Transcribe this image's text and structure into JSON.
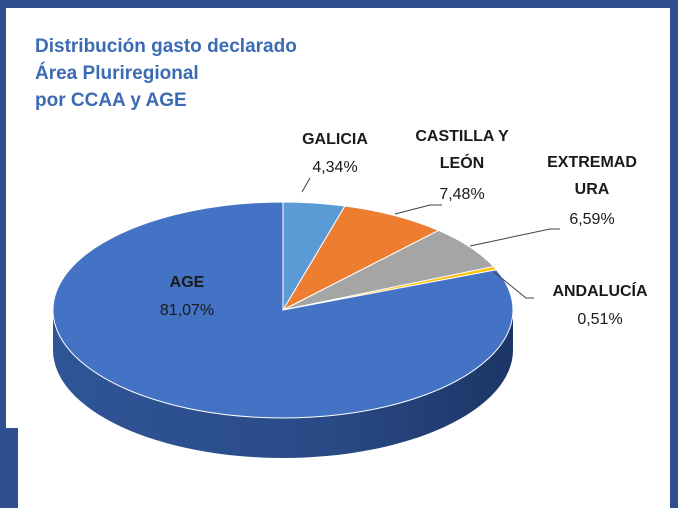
{
  "chart_data": {
    "type": "pie",
    "title": [
      "Distribución gasto declarado",
      "Área Pluriregional",
      "por CCAA y AGE"
    ],
    "categories": [
      "GALICIA",
      "CASTILLA Y LEÓN",
      "EXTREMADURA",
      "ANDALUCÍA",
      "AGE"
    ],
    "values": [
      4.34,
      7.48,
      6.59,
      0.51,
      81.07
    ],
    "value_labels": [
      "4,34%",
      "7,48%",
      "6,59%",
      "0,51%",
      "81,07%"
    ],
    "colors": [
      "#5b9bd5",
      "#ed7d31",
      "#a5a5a5",
      "#ffc000",
      "#4472c4"
    ]
  }
}
